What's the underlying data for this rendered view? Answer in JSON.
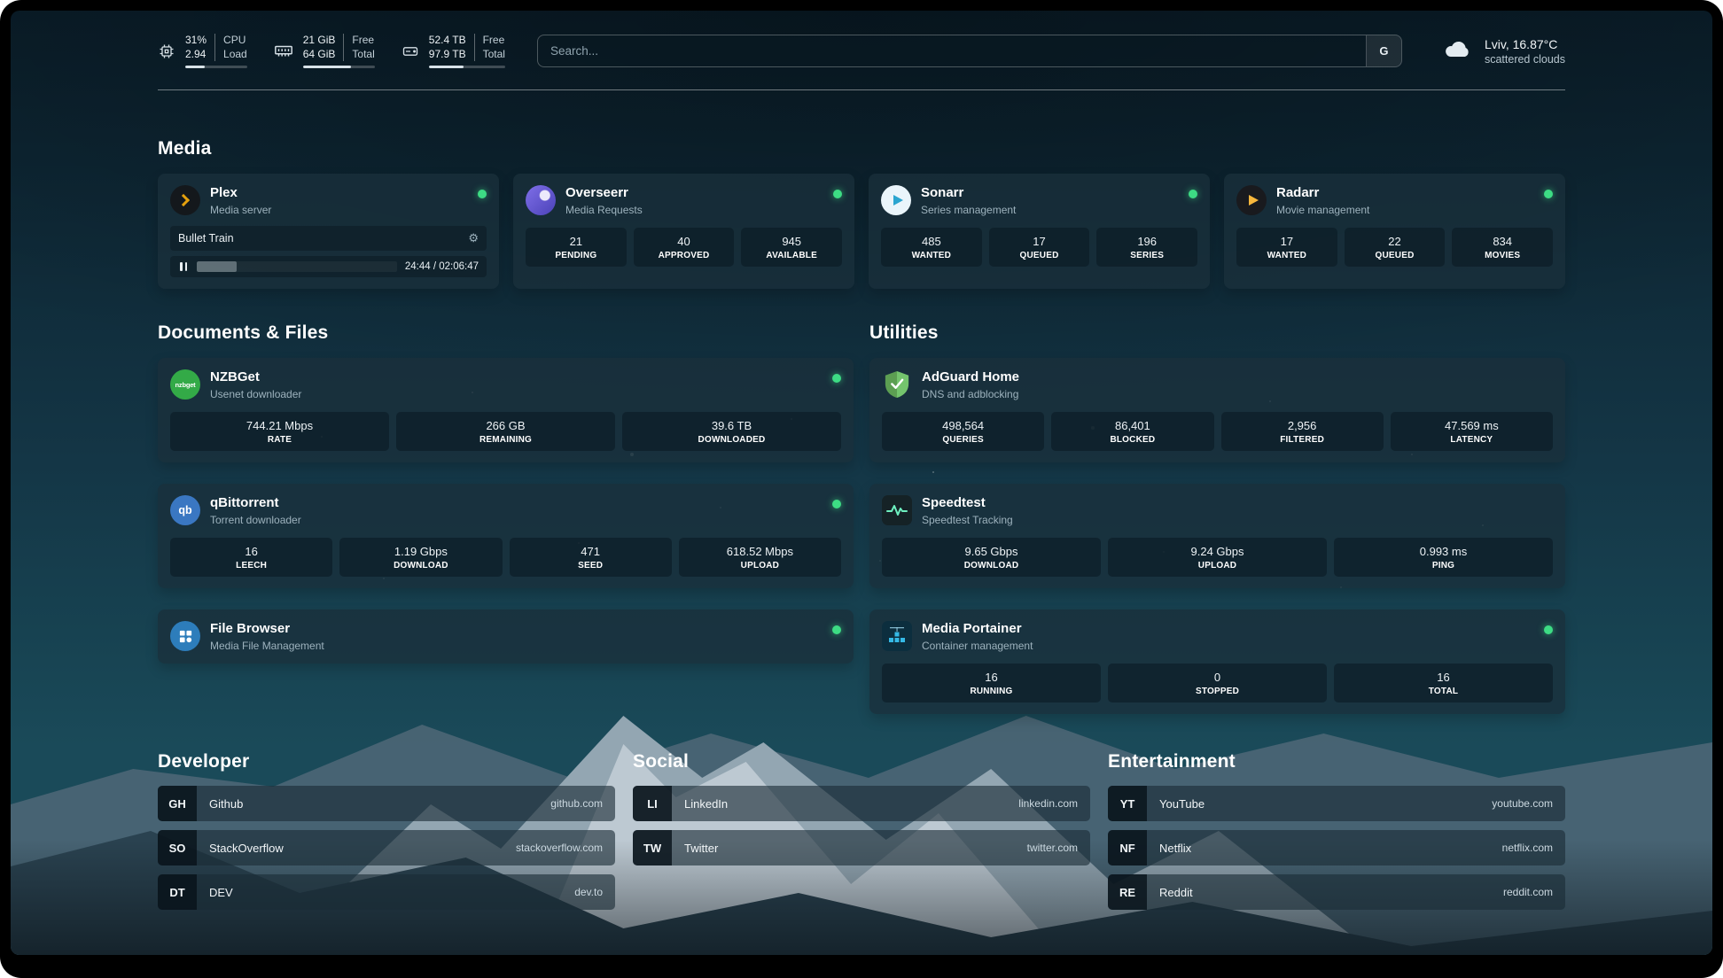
{
  "topbar": {
    "cpu": {
      "value_top": "31%",
      "label_top": "CPU",
      "value_bottom": "2.94",
      "label_bottom": "Load",
      "progress": 31
    },
    "memory": {
      "value_top": "21 GiB",
      "label_top": "Free",
      "value_bottom": "64 GiB",
      "label_bottom": "Total",
      "progress": 67
    },
    "disk": {
      "value_top": "52.4 TB",
      "label_top": "Free",
      "value_bottom": "97.9 TB",
      "label_bottom": "Total",
      "progress": 46
    },
    "search": {
      "placeholder": "Search...",
      "engine_button": "G"
    },
    "weather": {
      "location": "Lviv, 16.87°C",
      "condition": "scattered clouds"
    }
  },
  "sections": {
    "media": {
      "title": "Media"
    },
    "documents": {
      "title": "Documents & Files"
    },
    "utilities": {
      "title": "Utilities"
    },
    "developer": {
      "title": "Developer"
    },
    "social": {
      "title": "Social"
    },
    "entertainment": {
      "title": "Entertainment"
    }
  },
  "apps": {
    "plex": {
      "name": "Plex",
      "subtitle": "Media server",
      "online": true,
      "now_playing": {
        "title": "Bullet Train",
        "time": "24:44 / 02:06:47",
        "progress": 20
      }
    },
    "overseerr": {
      "name": "Overseerr",
      "subtitle": "Media Requests",
      "online": true,
      "stats": [
        {
          "value": "21",
          "label": "PENDING"
        },
        {
          "value": "40",
          "label": "APPROVED"
        },
        {
          "value": "945",
          "label": "AVAILABLE"
        }
      ]
    },
    "sonarr": {
      "name": "Sonarr",
      "subtitle": "Series management",
      "online": true,
      "stats": [
        {
          "value": "485",
          "label": "WANTED"
        },
        {
          "value": "17",
          "label": "QUEUED"
        },
        {
          "value": "196",
          "label": "SERIES"
        }
      ]
    },
    "radarr": {
      "name": "Radarr",
      "subtitle": "Movie management",
      "online": true,
      "stats": [
        {
          "value": "17",
          "label": "WANTED"
        },
        {
          "value": "22",
          "label": "QUEUED"
        },
        {
          "value": "834",
          "label": "MOVIES"
        }
      ]
    },
    "nzbget": {
      "name": "NZBGet",
      "subtitle": "Usenet downloader",
      "online": true,
      "logo_text": "nzbget",
      "stats": [
        {
          "value": "744.21 Mbps",
          "label": "RATE"
        },
        {
          "value": "266 GB",
          "label": "REMAINING"
        },
        {
          "value": "39.6 TB",
          "label": "DOWNLOADED"
        }
      ]
    },
    "qbittorrent": {
      "name": "qBittorrent",
      "subtitle": "Torrent downloader",
      "online": true,
      "logo_text": "qb",
      "stats": [
        {
          "value": "16",
          "label": "LEECH"
        },
        {
          "value": "1.19 Gbps",
          "label": "DOWNLOAD"
        },
        {
          "value": "471",
          "label": "SEED"
        },
        {
          "value": "618.52 Mbps",
          "label": "UPLOAD"
        }
      ]
    },
    "filebrowser": {
      "name": "File Browser",
      "subtitle": "Media File Management",
      "online": true
    },
    "adguard": {
      "name": "AdGuard Home",
      "subtitle": "DNS and adblocking",
      "stats": [
        {
          "value": "498,564",
          "label": "QUERIES"
        },
        {
          "value": "86,401",
          "label": "BLOCKED"
        },
        {
          "value": "2,956",
          "label": "FILTERED"
        },
        {
          "value": "47.569 ms",
          "label": "LATENCY"
        }
      ]
    },
    "speedtest": {
      "name": "Speedtest",
      "subtitle": "Speedtest Tracking",
      "stats": [
        {
          "value": "9.65 Gbps",
          "label": "DOWNLOAD"
        },
        {
          "value": "9.24 Gbps",
          "label": "UPLOAD"
        },
        {
          "value": "0.993 ms",
          "label": "PING"
        }
      ]
    },
    "portainer": {
      "name": "Media Portainer",
      "subtitle": "Container management",
      "online": true,
      "stats": [
        {
          "value": "16",
          "label": "RUNNING"
        },
        {
          "value": "0",
          "label": "STOPPED"
        },
        {
          "value": "16",
          "label": "TOTAL"
        }
      ]
    }
  },
  "bookmarks": {
    "developer": [
      {
        "abbr": "GH",
        "name": "Github",
        "url": "github.com"
      },
      {
        "abbr": "SO",
        "name": "StackOverflow",
        "url": "stackoverflow.com"
      },
      {
        "abbr": "DT",
        "name": "DEV",
        "url": "dev.to"
      }
    ],
    "social": [
      {
        "abbr": "LI",
        "name": "LinkedIn",
        "url": "linkedin.com"
      },
      {
        "abbr": "TW",
        "name": "Twitter",
        "url": "twitter.com"
      }
    ],
    "entertainment": [
      {
        "abbr": "YT",
        "name": "YouTube",
        "url": "youtube.com"
      },
      {
        "abbr": "NF",
        "name": "Netflix",
        "url": "netflix.com"
      },
      {
        "abbr": "RE",
        "name": "Reddit",
        "url": "reddit.com"
      }
    ]
  },
  "icons": {
    "settings_gear": "⚙",
    "names": [
      "cpu-icon",
      "memory-icon",
      "disk-icon",
      "search-engine-button",
      "weather-cloud-icon",
      "settings-gear-icon",
      "pause-icon",
      "status-dot",
      "plex-icon",
      "overseerr-icon",
      "sonarr-icon",
      "radarr-icon",
      "nzbget-icon",
      "qbittorrent-icon",
      "filebrowser-icon",
      "adguard-icon",
      "speedtest-icon",
      "portainer-icon"
    ]
  },
  "colors": {
    "status_online": "#3ddc84",
    "plex_gold": "#e5a00d",
    "radarr_gold": "#f7b73c",
    "sonarr_blue": "#2aa5d0",
    "nzbget_green": "#33aa47",
    "qbittorrent_blue": "#3a77c2",
    "adguard_green": "#68b471",
    "speedtest_mint": "#6ef0c0",
    "portainer_blue": "#35b9e6"
  }
}
